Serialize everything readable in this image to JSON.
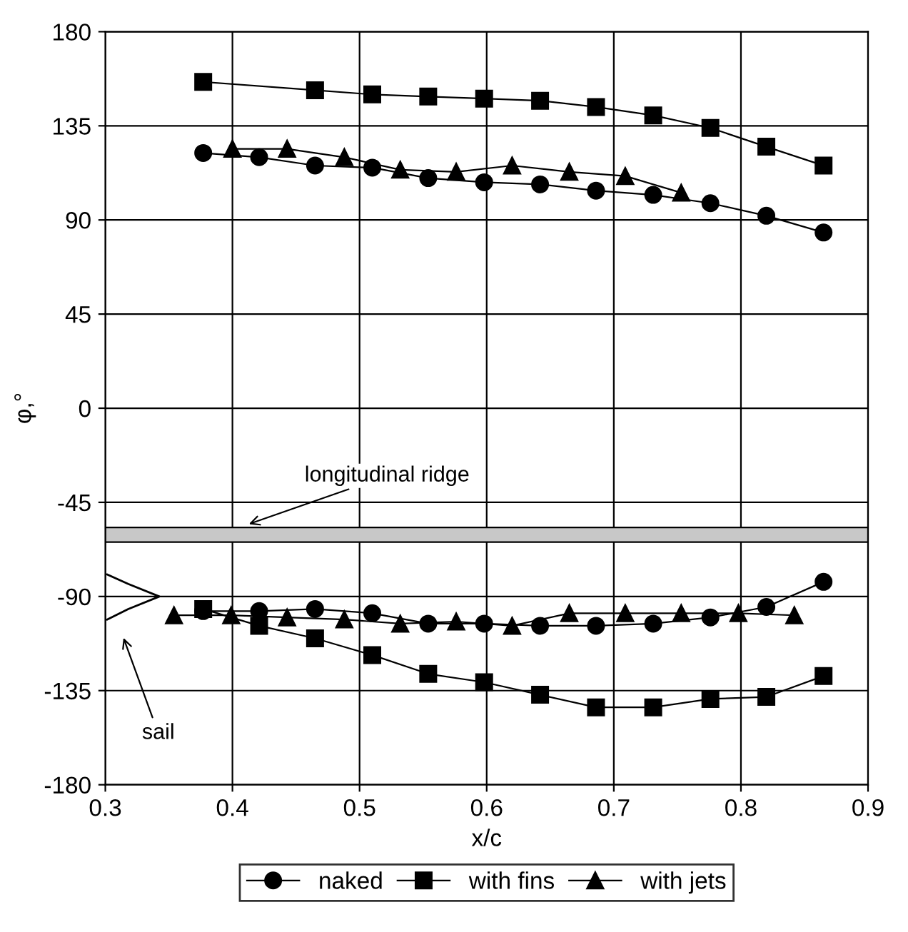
{
  "chart_data": {
    "type": "line",
    "xlabel": "x/c",
    "ylabel": "φ,°",
    "xlim": [
      0.3,
      0.9
    ],
    "xticks": [
      {
        "value": 0.3,
        "label": "0.3"
      },
      {
        "value": 0.4,
        "label": "0.4"
      },
      {
        "value": 0.5,
        "label": "0.5"
      },
      {
        "value": 0.6,
        "label": "0.6"
      },
      {
        "value": 0.7,
        "label": "0.7"
      },
      {
        "value": 0.8,
        "label": "0.8"
      },
      {
        "value": 0.9,
        "label": "0.9"
      }
    ],
    "ylim": [
      -180,
      180
    ],
    "yticks": [
      -180,
      -135,
      -90,
      -45,
      0,
      45,
      90,
      135,
      180
    ],
    "grid": true,
    "legend": "bottom",
    "line_style": "solid",
    "series": [
      {
        "name": "naked",
        "color": "#000000",
        "marker": "circle",
        "x": [
          0.377,
          0.421,
          0.465,
          0.51,
          0.554,
          0.598,
          0.642,
          0.686,
          0.731,
          0.776,
          0.82,
          0.865
        ],
        "values": [
          122,
          120,
          116,
          115,
          110,
          108,
          107,
          104,
          102,
          98,
          92,
          84
        ]
      },
      {
        "name": null,
        "color": "#000000",
        "marker": "circle",
        "x": [
          0.377,
          0.421,
          0.465,
          0.51,
          0.554,
          0.598,
          0.642,
          0.686,
          0.731,
          0.776,
          0.82,
          0.865
        ],
        "values": [
          -97,
          -97,
          -96,
          -98,
          -103,
          -103,
          -104,
          -104,
          -103,
          -100,
          -95,
          -83
        ]
      },
      {
        "name": "with fins",
        "color": "#000000",
        "marker": "square",
        "x": [
          0.377,
          0.465,
          0.51,
          0.554,
          0.598,
          0.642,
          0.686,
          0.731,
          0.776,
          0.82,
          0.865
        ],
        "values": [
          156,
          152,
          150,
          149,
          148,
          147,
          144,
          140,
          134,
          125,
          116
        ]
      },
      {
        "name": null,
        "color": "#000000",
        "marker": "square",
        "x": [
          0.377,
          0.421,
          0.465,
          0.51,
          0.554,
          0.598,
          0.642,
          0.686,
          0.731,
          0.776,
          0.82,
          0.865
        ],
        "values": [
          -96,
          -104,
          -110,
          -118,
          -127,
          -131,
          -137,
          -143,
          -143,
          -139,
          -138,
          -128
        ]
      },
      {
        "name": "with jets",
        "color": "#000000",
        "marker": "triangle",
        "x": [
          0.4,
          0.443,
          0.488,
          0.532,
          0.576,
          0.62,
          0.665,
          0.709,
          0.753
        ],
        "values": [
          124,
          124,
          120,
          114,
          113,
          116,
          113,
          111,
          103
        ]
      },
      {
        "name": null,
        "color": "#000000",
        "marker": "triangle",
        "x": [
          0.354,
          0.399,
          0.443,
          0.488,
          0.532,
          0.576,
          0.62,
          0.665,
          0.709,
          0.753,
          0.798,
          0.842
        ],
        "values": [
          -99,
          -99,
          -100,
          -101,
          -103,
          -102,
          -104,
          -98,
          -98,
          -98,
          -98,
          -99
        ]
      }
    ],
    "bands": [
      {
        "axis": "y",
        "from": -64,
        "to": -57,
        "color": "#c8c8c8"
      }
    ],
    "annotations": [
      {
        "text": "longitudinal ridge",
        "x": 0.41,
        "y": -56
      },
      "sail"
    ]
  }
}
